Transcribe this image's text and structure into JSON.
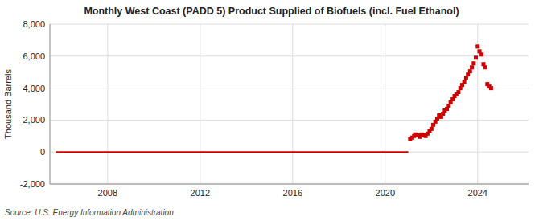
{
  "chart_data": {
    "type": "scatter",
    "title": "Monthly West Coast (PADD 5) Product Supplied of Biofuels (incl. Fuel Ethanol)",
    "y_label": "Thousand Barrels",
    "source": "Source: U.S. Energy Information Administration",
    "series": [
      {
        "type": "line",
        "color": "#cc0000",
        "line_style": "solid",
        "x": [
          2005.75,
          2021.0
        ],
        "values": [
          0,
          0
        ]
      },
      {
        "type": "scatter",
        "color": "#cc0000",
        "marker": "square",
        "x": [
          2021.08,
          2021.17,
          2021.25,
          2021.33,
          2021.42,
          2021.5,
          2021.58,
          2021.67,
          2021.75,
          2021.83,
          2021.92,
          2022.0,
          2022.08,
          2022.17,
          2022.25,
          2022.33,
          2022.42,
          2022.5,
          2022.58,
          2022.67,
          2022.75,
          2022.83,
          2022.92,
          2023.0,
          2023.08,
          2023.17,
          2023.25,
          2023.33,
          2023.42,
          2023.5,
          2023.58,
          2023.67,
          2023.75,
          2023.83,
          2023.92,
          2024.0,
          2024.08,
          2024.17,
          2024.25,
          2024.33,
          2024.42,
          2024.5,
          2024.58
        ],
        "values": [
          800,
          900,
          1000,
          1100,
          1050,
          950,
          1100,
          1050,
          1000,
          1150,
          1300,
          1450,
          1700,
          1900,
          2100,
          2300,
          2200,
          2400,
          2600,
          2700,
          2900,
          3100,
          3300,
          3500,
          3600,
          3750,
          4000,
          4200,
          4400,
          4650,
          4850,
          5050,
          5300,
          5550,
          5900,
          6600,
          6300,
          6100,
          5500,
          5300,
          4250,
          4100,
          4000
        ]
      }
    ],
    "xlim": [
      2005.5,
      2026.2
    ],
    "xticks": [
      2008,
      2012,
      2016,
      2020,
      2024
    ],
    "ylim": [
      -2000,
      8000
    ],
    "yticks": [
      {
        "value": -2000,
        "label": "-2,000"
      },
      0,
      {
        "value": 2000,
        "label": "2,000"
      },
      {
        "value": 4000,
        "label": "4,000"
      },
      {
        "value": 6000,
        "label": "6,000"
      },
      {
        "value": 8000,
        "label": "8,000"
      }
    ],
    "grid": true
  }
}
